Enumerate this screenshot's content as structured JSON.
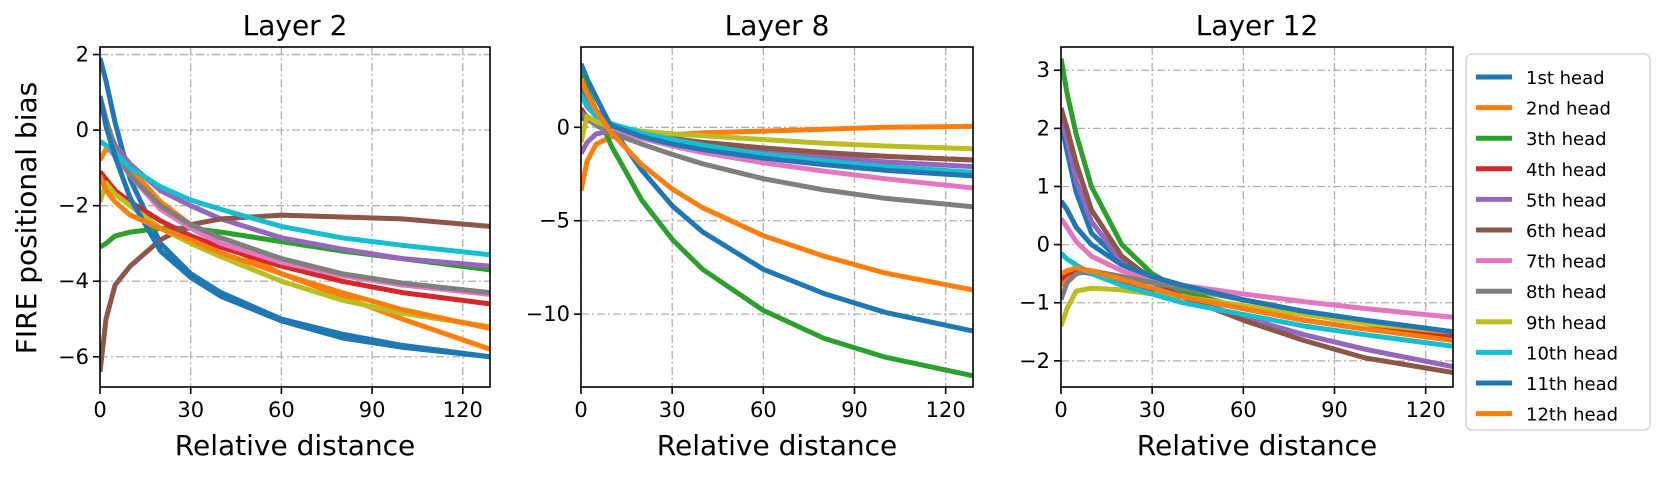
{
  "figure": {
    "ylabel": "FIRE positional bias",
    "xlabel": "Relative distance"
  },
  "chart_data": [
    {
      "type": "line",
      "title": "Layer 2",
      "xlabel": "Relative distance",
      "ylabel": "FIRE positional bias",
      "xlim": [
        0,
        129
      ],
      "ylim": [
        -6.8,
        2.2
      ],
      "xticks": [
        0,
        30,
        60,
        90,
        120
      ],
      "yticks": [
        2,
        0,
        -2,
        -4,
        -6
      ],
      "grid": true,
      "x": [
        0,
        2,
        5,
        10,
        20,
        30,
        40,
        60,
        80,
        100,
        129
      ],
      "series": [
        {
          "name": "1st head",
          "color": "#1f77b4",
          "values": [
            1.9,
            1.3,
            0.2,
            -1.3,
            -3.0,
            -3.8,
            -4.3,
            -5.0,
            -5.4,
            -5.7,
            -6.0
          ]
        },
        {
          "name": "2nd head",
          "color": "#ff7f0e",
          "values": [
            -0.8,
            -0.5,
            -0.6,
            -1.0,
            -1.9,
            -2.5,
            -3.0,
            -3.8,
            -4.4,
            -5.0,
            -5.8
          ]
        },
        {
          "name": "3th head",
          "color": "#2ca02c",
          "values": [
            -3.1,
            -3.0,
            -2.8,
            -2.7,
            -2.6,
            -2.6,
            -2.7,
            -2.95,
            -3.2,
            -3.4,
            -3.7
          ]
        },
        {
          "name": "4th head",
          "color": "#d62728",
          "values": [
            -1.1,
            -1.3,
            -1.6,
            -1.9,
            -2.4,
            -2.8,
            -3.1,
            -3.6,
            -4.0,
            -4.3,
            -4.6
          ]
        },
        {
          "name": "5th head",
          "color": "#9467bd",
          "values": [
            0.8,
            0.2,
            -0.4,
            -0.9,
            -1.6,
            -2.0,
            -2.35,
            -2.85,
            -3.15,
            -3.4,
            -3.6
          ]
        },
        {
          "name": "6th head",
          "color": "#8c564b",
          "values": [
            -6.4,
            -5.0,
            -4.1,
            -3.6,
            -2.9,
            -2.5,
            -2.35,
            -2.25,
            -2.3,
            -2.35,
            -2.55
          ]
        },
        {
          "name": "7th head",
          "color": "#e377c2",
          "values": [
            -0.3,
            -0.4,
            -0.7,
            -1.2,
            -2.1,
            -2.6,
            -3.0,
            -3.5,
            -3.85,
            -4.1,
            -4.35
          ]
        },
        {
          "name": "8th head",
          "color": "#7f7f7f",
          "values": [
            0.9,
            0.3,
            -0.5,
            -1.2,
            -2.0,
            -2.5,
            -2.85,
            -3.4,
            -3.8,
            -4.05,
            -4.3
          ]
        },
        {
          "name": "9th head",
          "color": "#bcbd22",
          "values": [
            -1.9,
            -1.4,
            -1.7,
            -2.0,
            -2.6,
            -3.0,
            -3.35,
            -4.0,
            -4.5,
            -4.85,
            -5.2
          ]
        },
        {
          "name": "10th head",
          "color": "#17becf",
          "values": [
            -0.3,
            -0.4,
            -0.6,
            -1.0,
            -1.5,
            -1.85,
            -2.1,
            -2.55,
            -2.85,
            -3.05,
            -3.3
          ]
        },
        {
          "name": "11th head",
          "color": "#1f77b4",
          "values": [
            0.9,
            0.1,
            -0.7,
            -1.8,
            -3.2,
            -3.9,
            -4.4,
            -5.05,
            -5.5,
            -5.75,
            -6.0
          ]
        },
        {
          "name": "12th head",
          "color": "#ff7f0e",
          "values": [
            -1.2,
            -1.6,
            -1.9,
            -2.25,
            -2.6,
            -2.9,
            -3.25,
            -3.8,
            -4.3,
            -4.75,
            -5.25
          ]
        }
      ]
    },
    {
      "type": "line",
      "title": "Layer 8",
      "xlabel": "Relative distance",
      "ylabel": "",
      "xlim": [
        0,
        129
      ],
      "ylim": [
        -13.9,
        4.3
      ],
      "xticks": [
        0,
        30,
        60,
        90,
        120
      ],
      "yticks": [
        0,
        -5,
        -10
      ],
      "grid": true,
      "x": [
        0,
        2,
        5,
        10,
        20,
        30,
        40,
        60,
        80,
        100,
        129
      ],
      "series": [
        {
          "name": "1st head",
          "color": "#1f77b4",
          "values": [
            3.4,
            2.6,
            1.6,
            0.0,
            -2.3,
            -4.2,
            -5.6,
            -7.6,
            -8.9,
            -9.9,
            -10.9
          ]
        },
        {
          "name": "2nd head",
          "color": "#ff7f0e",
          "values": [
            -3.4,
            -1.8,
            -0.9,
            -0.5,
            -0.45,
            -0.4,
            -0.3,
            -0.2,
            -0.1,
            0.0,
            0.05
          ]
        },
        {
          "name": "3th head",
          "color": "#2ca02c",
          "values": [
            2.9,
            2.0,
            0.9,
            -1.0,
            -3.9,
            -6.0,
            -7.6,
            -9.8,
            -11.3,
            -12.3,
            -13.3
          ]
        },
        {
          "name": "4th head",
          "color": "#d62728",
          "values": [
            1.0,
            0.5,
            0.2,
            -0.1,
            -0.45,
            -0.7,
            -0.9,
            -1.2,
            -1.4,
            -1.55,
            -1.75
          ]
        },
        {
          "name": "5th head",
          "color": "#9467bd",
          "values": [
            -1.4,
            -0.8,
            -0.35,
            -0.2,
            -0.45,
            -0.7,
            -0.95,
            -1.3,
            -1.6,
            -1.85,
            -2.1
          ]
        },
        {
          "name": "6th head",
          "color": "#8c564b",
          "values": [
            0.5,
            0.4,
            0.2,
            0.0,
            -0.35,
            -0.6,
            -0.8,
            -1.1,
            -1.35,
            -1.55,
            -1.75
          ]
        },
        {
          "name": "7th head",
          "color": "#e377c2",
          "values": [
            2.0,
            1.3,
            0.6,
            0.0,
            -0.6,
            -1.0,
            -1.35,
            -1.9,
            -2.35,
            -2.75,
            -3.25
          ]
        },
        {
          "name": "8th head",
          "color": "#7f7f7f",
          "values": [
            0.8,
            0.5,
            0.1,
            -0.3,
            -0.9,
            -1.45,
            -1.95,
            -2.75,
            -3.35,
            -3.8,
            -4.25
          ]
        },
        {
          "name": "9th head",
          "color": "#bcbd22",
          "values": [
            -0.8,
            0.6,
            0.3,
            0.0,
            -0.2,
            -0.35,
            -0.45,
            -0.65,
            -0.85,
            -1.0,
            -1.15
          ]
        },
        {
          "name": "10th head",
          "color": "#17becf",
          "values": [
            1.8,
            1.1,
            0.6,
            0.2,
            -0.3,
            -0.65,
            -0.95,
            -1.45,
            -1.8,
            -2.1,
            -2.4
          ]
        },
        {
          "name": "11th head",
          "color": "#1f77b4",
          "values": [
            2.3,
            1.7,
            0.9,
            0.1,
            -0.5,
            -0.9,
            -1.2,
            -1.65,
            -2.0,
            -2.3,
            -2.6
          ]
        },
        {
          "name": "12th head",
          "color": "#ff7f0e",
          "values": [
            2.6,
            1.8,
            0.9,
            -0.3,
            -2.0,
            -3.3,
            -4.3,
            -5.8,
            -6.9,
            -7.8,
            -8.7
          ]
        }
      ]
    },
    {
      "type": "line",
      "title": "Layer 12",
      "xlabel": "Relative distance",
      "ylabel": "",
      "xlim": [
        0,
        129
      ],
      "ylim": [
        -2.45,
        3.4
      ],
      "xticks": [
        0,
        30,
        60,
        90,
        120
      ],
      "yticks": [
        3,
        2,
        1,
        0,
        -1,
        -2
      ],
      "grid": true,
      "x": [
        0,
        2,
        5,
        10,
        20,
        30,
        40,
        60,
        80,
        100,
        129
      ],
      "series": [
        {
          "name": "1st head",
          "color": "#1f77b4",
          "values": [
            2.1,
            1.6,
            0.9,
            0.2,
            -0.3,
            -0.55,
            -0.7,
            -0.95,
            -1.15,
            -1.35,
            -1.55
          ]
        },
        {
          "name": "2nd head",
          "color": "#ff7f0e",
          "values": [
            -0.7,
            -0.6,
            -0.45,
            -0.45,
            -0.55,
            -0.65,
            -0.75,
            -0.95,
            -1.15,
            -1.35,
            -1.6
          ]
        },
        {
          "name": "3th head",
          "color": "#2ca02c",
          "values": [
            3.2,
            2.6,
            1.9,
            1.0,
            0.0,
            -0.5,
            -0.8,
            -1.1,
            -1.3,
            -1.45,
            -1.6
          ]
        },
        {
          "name": "4th head",
          "color": "#d62728",
          "values": [
            -0.6,
            -0.5,
            -0.45,
            -0.5,
            -0.65,
            -0.8,
            -0.9,
            -1.1,
            -1.3,
            -1.45,
            -1.6
          ]
        },
        {
          "name": "5th head",
          "color": "#9467bd",
          "values": [
            2.2,
            1.8,
            1.1,
            0.4,
            -0.3,
            -0.65,
            -0.9,
            -1.25,
            -1.55,
            -1.8,
            -2.1
          ]
        },
        {
          "name": "6th head",
          "color": "#8c564b",
          "values": [
            2.35,
            2.0,
            1.4,
            0.6,
            -0.2,
            -0.6,
            -0.9,
            -1.3,
            -1.65,
            -1.95,
            -2.2
          ]
        },
        {
          "name": "7th head",
          "color": "#e377c2",
          "values": [
            0.45,
            0.3,
            0.05,
            -0.2,
            -0.45,
            -0.6,
            -0.7,
            -0.85,
            -0.98,
            -1.1,
            -1.25
          ]
        },
        {
          "name": "8th head",
          "color": "#7f7f7f",
          "values": [
            -0.95,
            -0.65,
            -0.5,
            -0.45,
            -0.55,
            -0.65,
            -0.75,
            -0.95,
            -1.15,
            -1.3,
            -1.5
          ]
        },
        {
          "name": "9th head",
          "color": "#bcbd22",
          "values": [
            -1.4,
            -1.1,
            -0.8,
            -0.75,
            -0.78,
            -0.85,
            -0.9,
            -1.05,
            -1.2,
            -1.35,
            -1.5
          ]
        },
        {
          "name": "10th head",
          "color": "#17becf",
          "values": [
            -0.15,
            -0.25,
            -0.35,
            -0.5,
            -0.7,
            -0.85,
            -1.0,
            -1.2,
            -1.4,
            -1.55,
            -1.75
          ]
        },
        {
          "name": "11th head",
          "color": "#1f77b4",
          "values": [
            0.75,
            0.6,
            0.3,
            0.0,
            -0.35,
            -0.55,
            -0.7,
            -0.95,
            -1.15,
            -1.3,
            -1.5
          ]
        },
        {
          "name": "12th head",
          "color": "#ff7f0e",
          "values": [
            -0.5,
            -0.45,
            -0.4,
            -0.45,
            -0.6,
            -0.75,
            -0.9,
            -1.1,
            -1.3,
            -1.45,
            -1.65
          ]
        }
      ]
    }
  ],
  "legend": {
    "placement": "right",
    "entries": [
      {
        "label": "1st head",
        "color": "#1f77b4"
      },
      {
        "label": "2nd head",
        "color": "#ff7f0e"
      },
      {
        "label": "3th head",
        "color": "#2ca02c"
      },
      {
        "label": "4th head",
        "color": "#d62728"
      },
      {
        "label": "5th head",
        "color": "#9467bd"
      },
      {
        "label": "6th head",
        "color": "#8c564b"
      },
      {
        "label": "7th head",
        "color": "#e377c2"
      },
      {
        "label": "8th head",
        "color": "#7f7f7f"
      },
      {
        "label": "9th head",
        "color": "#bcbd22"
      },
      {
        "label": "10th head",
        "color": "#17becf"
      },
      {
        "label": "11th head",
        "color": "#1f77b4"
      },
      {
        "label": "12th head",
        "color": "#ff7f0e"
      }
    ]
  }
}
